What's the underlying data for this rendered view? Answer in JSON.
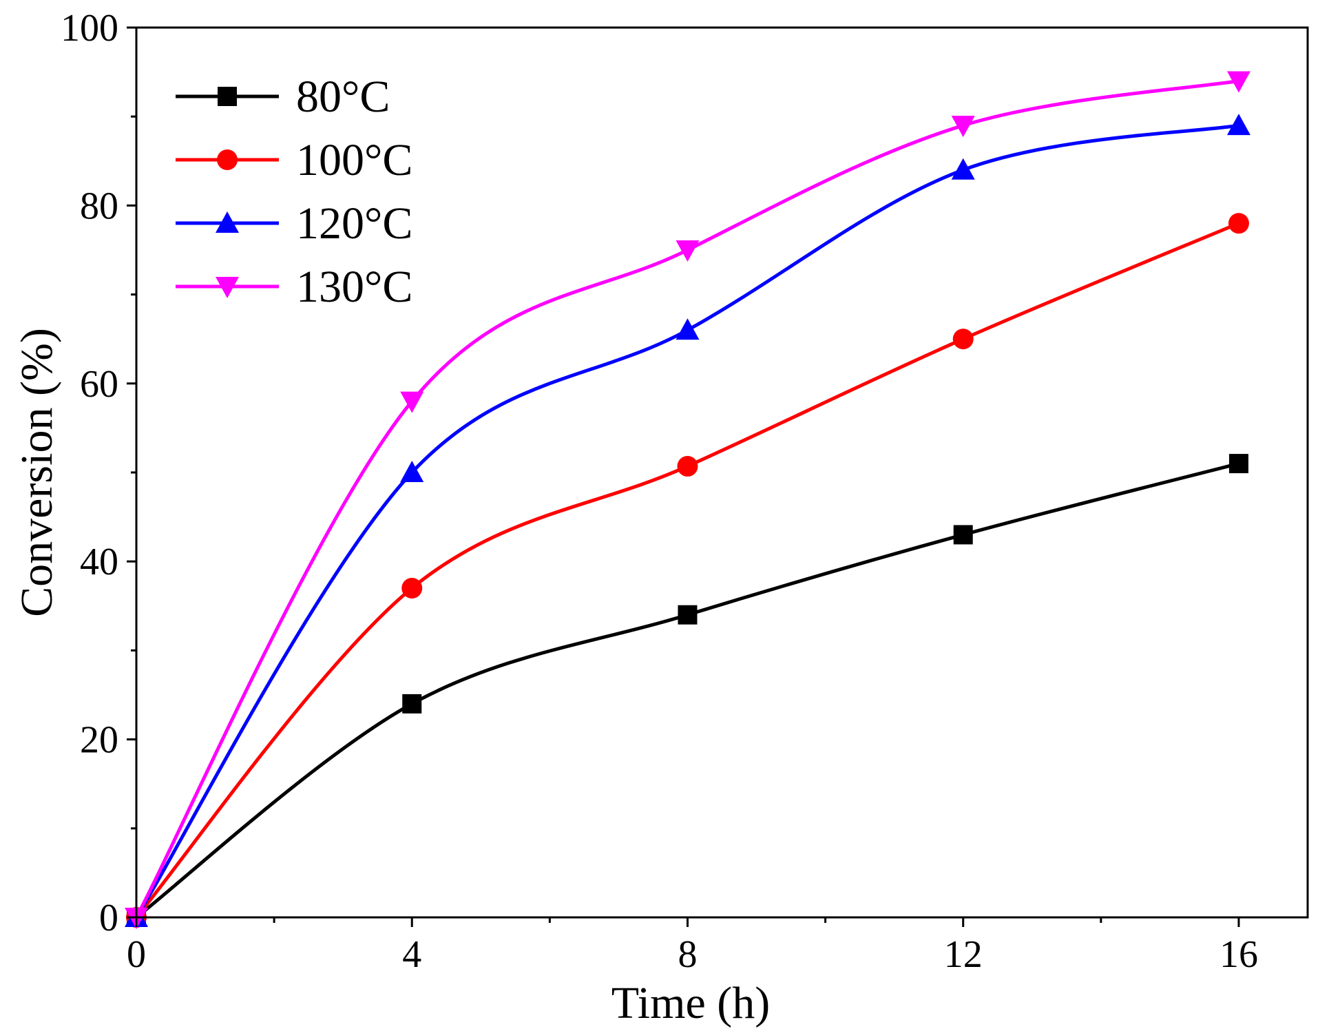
{
  "chart_data": {
    "type": "line",
    "title": "",
    "xlabel": "Time (h)",
    "ylabel": "Conversion (%)",
    "xlim": [
      0,
      17
    ],
    "ylim": [
      0,
      100
    ],
    "xticks": [
      0,
      4,
      8,
      12,
      16
    ],
    "xminor": [
      2,
      6,
      10,
      14
    ],
    "yticks": [
      0,
      20,
      40,
      60,
      80,
      100
    ],
    "yminor": [
      10,
      30,
      50,
      70,
      90
    ],
    "x": [
      0,
      4,
      8,
      12,
      16
    ],
    "legend_position": "top-left",
    "grid": false,
    "series": [
      {
        "name": "80°C",
        "color": "#000000",
        "marker": "square",
        "values": [
          0,
          24,
          34,
          43,
          51
        ]
      },
      {
        "name": "100°C",
        "color": "#ff0000",
        "marker": "circle",
        "values": [
          0,
          37,
          50.7,
          65,
          78
        ]
      },
      {
        "name": "120°C",
        "color": "#0000ff",
        "marker": "triangle-up",
        "values": [
          0,
          50,
          66,
          84,
          89
        ]
      },
      {
        "name": "130°C",
        "color": "#ff00ff",
        "marker": "triangle-down",
        "values": [
          0,
          58,
          75,
          89,
          94
        ]
      }
    ]
  }
}
